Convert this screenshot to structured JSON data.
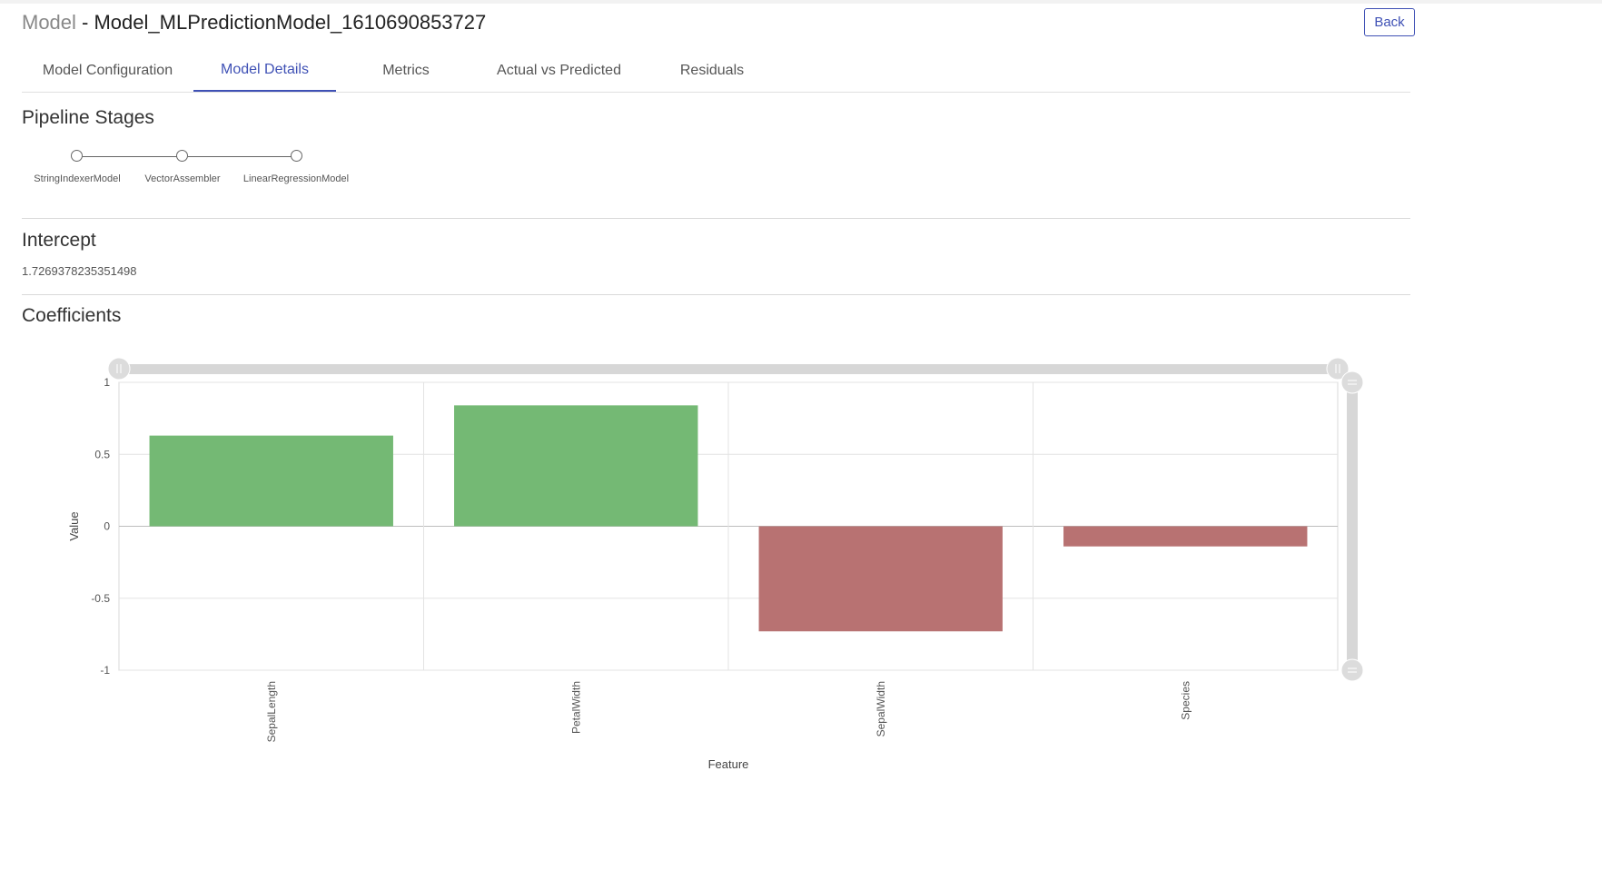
{
  "header": {
    "breadcrumb": "Model",
    "separator": " - ",
    "model_name": "Model_MLPredictionModel_1610690853727",
    "back_label": "Back"
  },
  "tabs": [
    {
      "label": "Model Configuration",
      "active": false
    },
    {
      "label": "Model Details",
      "active": true
    },
    {
      "label": "Metrics",
      "active": false
    },
    {
      "label": "Actual vs Predicted",
      "active": false
    },
    {
      "label": "Residuals",
      "active": false
    }
  ],
  "pipeline": {
    "title": "Pipeline Stages",
    "stages": [
      "StringIndexerModel",
      "VectorAssembler",
      "LinearRegressionModel"
    ]
  },
  "intercept": {
    "title": "Intercept",
    "value": "1.7269378235351498"
  },
  "coefficients": {
    "title": "Coefficients"
  },
  "colors": {
    "accent": "#3f51b5",
    "positive_bar": "#74b974",
    "negative_bar": "#b87272"
  },
  "chart_data": {
    "type": "bar",
    "categories": [
      "SepalLength",
      "PetalWidth",
      "SepalWidth",
      "Species"
    ],
    "values": [
      0.63,
      0.84,
      -0.73,
      -0.14
    ],
    "xlabel": "Feature",
    "ylabel": "Value",
    "ylim": [
      -1,
      1
    ],
    "yticks": [
      "1",
      "0.5",
      "0",
      "-0.5",
      "-1"
    ],
    "grid": true,
    "legend": "none"
  }
}
